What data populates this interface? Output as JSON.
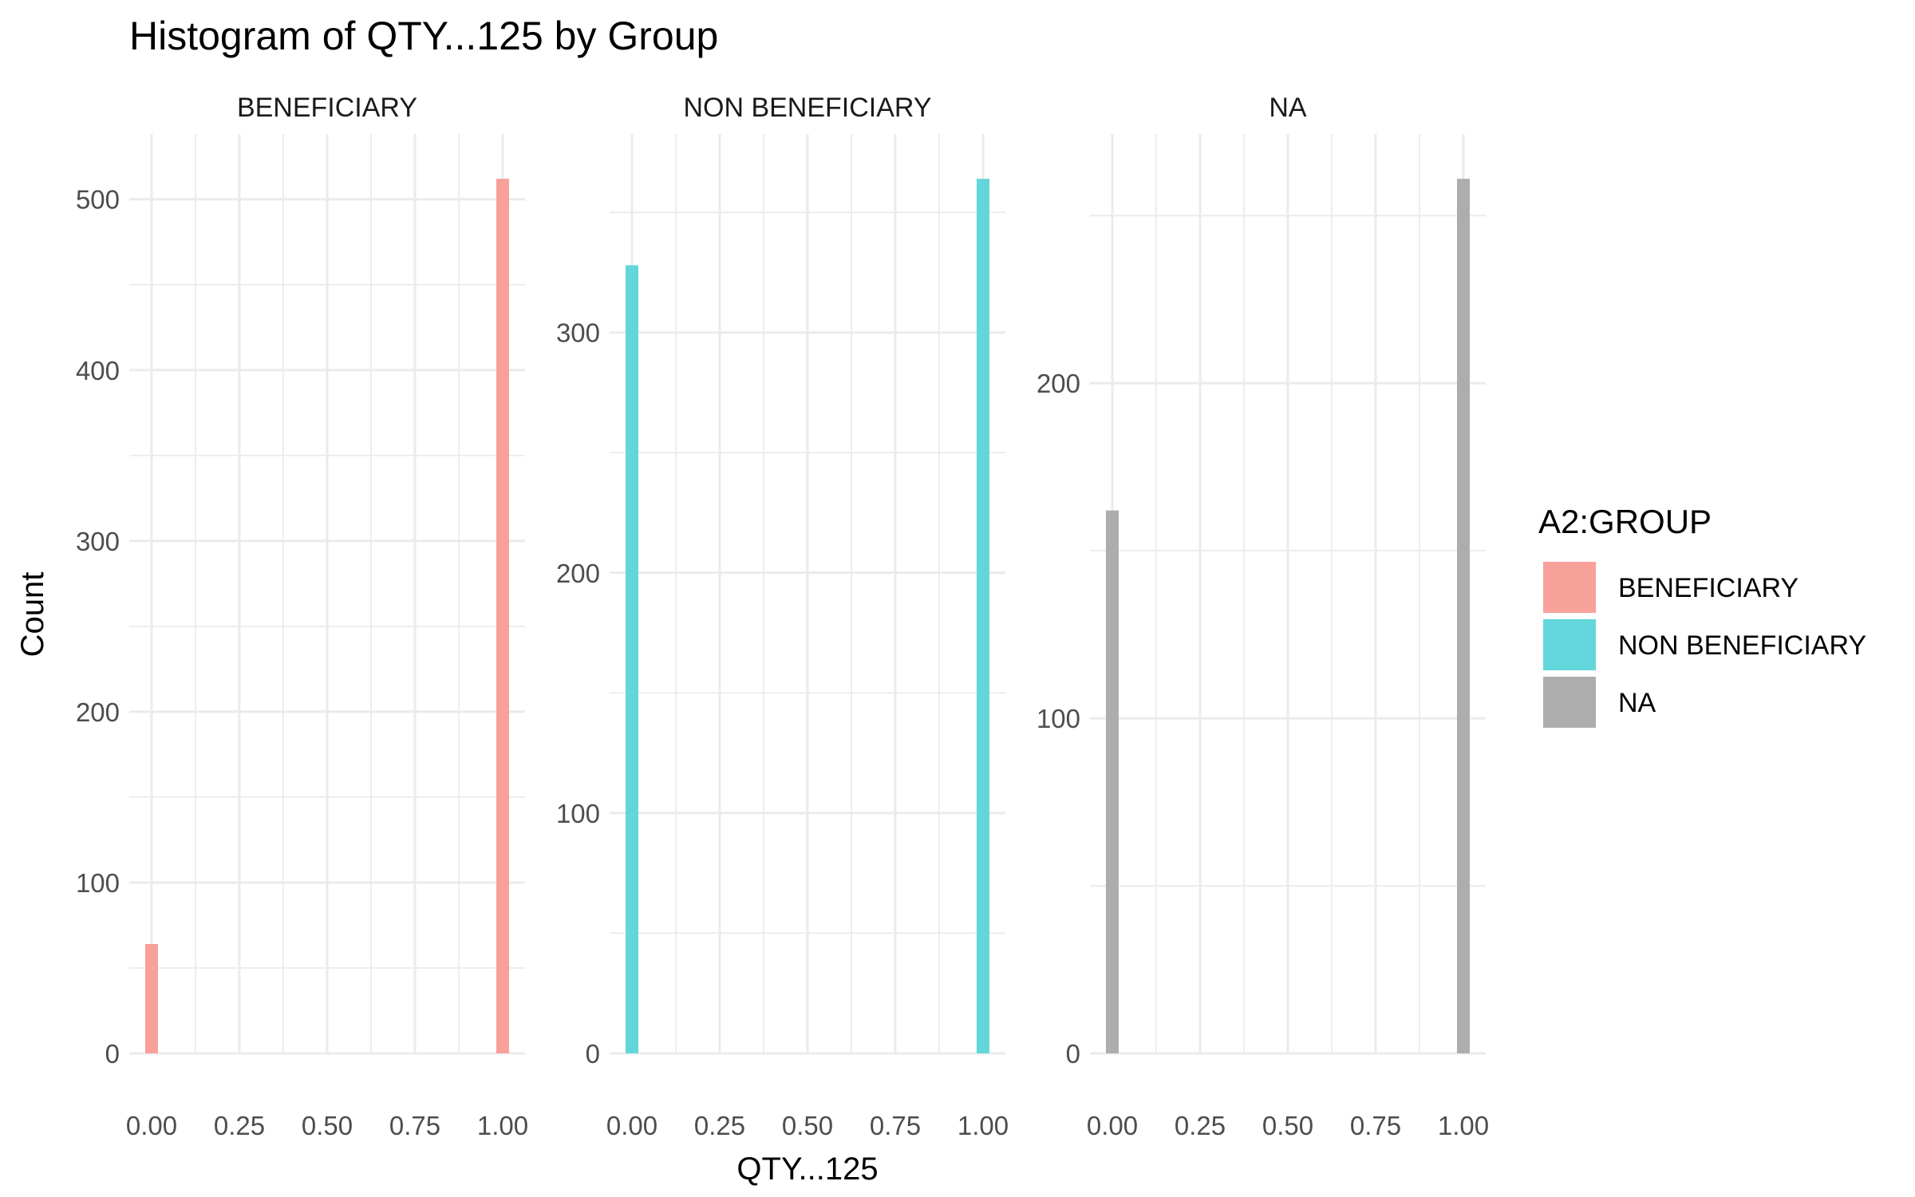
{
  "chart_data": {
    "type": "bar",
    "title": "Histogram of QTY...125 by Group",
    "xlabel": "QTY...125",
    "ylabel": "Count",
    "legend": {
      "title": "A2:GROUP",
      "placement": "right",
      "entries": [
        {
          "label": "BENEFICIARY",
          "color": "#F8A19A"
        },
        {
          "label": "NON BENEFICIARY",
          "color": "#63D6DB"
        },
        {
          "label": "NA",
          "color": "#ADADAD"
        }
      ]
    },
    "x_ticks": [
      "0.00",
      "0.25",
      "0.50",
      "0.75",
      "1.00"
    ],
    "xlim": [
      0,
      1
    ],
    "grid": true,
    "facets": [
      {
        "strip": "BENEFICIARY",
        "color": "#F8A19A",
        "ylim": [
          0,
          512
        ],
        "y_ticks": [
          0,
          100,
          200,
          300,
          400,
          500
        ],
        "bars": [
          {
            "x": 0,
            "count": 64
          },
          {
            "x": 1,
            "count": 512
          }
        ]
      },
      {
        "strip": "NON BENEFICIARY",
        "color": "#63D6DB",
        "ylim": [
          0,
          364
        ],
        "y_ticks": [
          0,
          100,
          200,
          300
        ],
        "bars": [
          {
            "x": 0,
            "count": 328
          },
          {
            "x": 1,
            "count": 364
          }
        ]
      },
      {
        "strip": "NA",
        "color": "#ADADAD",
        "ylim": [
          0,
          261
        ],
        "y_ticks": [
          0,
          100,
          200
        ],
        "bars": [
          {
            "x": 0,
            "count": 162
          },
          {
            "x": 1,
            "count": 261
          }
        ]
      }
    ]
  }
}
